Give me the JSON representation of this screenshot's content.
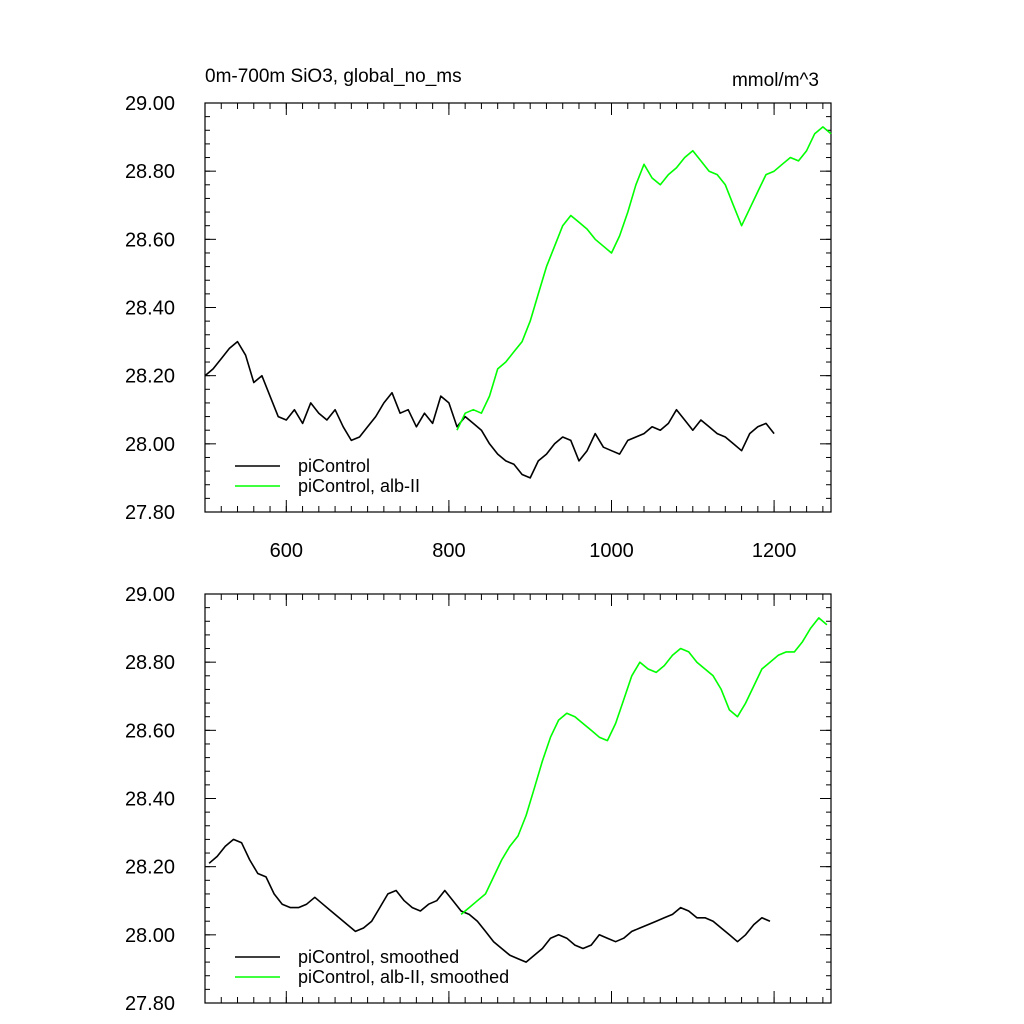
{
  "figure": {
    "title_left": "0m-700m SiO3, global_no_ms",
    "title_right": "mmol/m^3"
  },
  "chart_data": [
    {
      "type": "line",
      "title": "0m-700m SiO3, global_no_ms",
      "units": "mmol/m^3",
      "xlim": [
        500,
        1270
      ],
      "ylim": [
        27.8,
        29.0
      ],
      "xticks": [
        600,
        800,
        1000,
        1200
      ],
      "xtick_labels": [
        "600",
        "800",
        "1000",
        "1200"
      ],
      "yticks": [
        27.8,
        28.0,
        28.2,
        28.4,
        28.6,
        28.8,
        29.0
      ],
      "ytick_labels": [
        "27.80",
        "28.00",
        "28.20",
        "28.40",
        "28.60",
        "28.80",
        "29.00"
      ],
      "legend_position": "bottom-left",
      "series": [
        {
          "name": "piControl",
          "color": "#000000",
          "x": [
            500,
            510,
            520,
            530,
            540,
            550,
            560,
            570,
            580,
            590,
            600,
            610,
            620,
            630,
            640,
            650,
            660,
            670,
            680,
            690,
            700,
            710,
            720,
            730,
            740,
            750,
            760,
            770,
            780,
            790,
            800,
            810,
            820,
            830,
            840,
            850,
            860,
            870,
            880,
            890,
            900,
            910,
            920,
            930,
            940,
            950,
            960,
            970,
            980,
            990,
            1000,
            1010,
            1020,
            1030,
            1040,
            1050,
            1060,
            1070,
            1080,
            1090,
            1100,
            1110,
            1120,
            1130,
            1140,
            1150,
            1160,
            1170,
            1180,
            1190,
            1200
          ],
          "y": [
            28.2,
            28.22,
            28.25,
            28.28,
            28.3,
            28.26,
            28.18,
            28.2,
            28.14,
            28.08,
            28.07,
            28.1,
            28.06,
            28.12,
            28.09,
            28.07,
            28.1,
            28.05,
            28.01,
            28.02,
            28.05,
            28.08,
            28.12,
            28.15,
            28.09,
            28.1,
            28.05,
            28.09,
            28.06,
            28.14,
            28.12,
            28.05,
            28.08,
            28.06,
            28.04,
            28.0,
            27.97,
            27.95,
            27.94,
            27.91,
            27.9,
            27.95,
            27.97,
            28.0,
            28.02,
            28.01,
            27.95,
            27.98,
            28.03,
            27.99,
            27.98,
            27.97,
            28.01,
            28.02,
            28.03,
            28.05,
            28.04,
            28.06,
            28.1,
            28.07,
            28.04,
            28.07,
            28.05,
            28.03,
            28.02,
            28.0,
            27.98,
            28.03,
            28.05,
            28.06,
            28.03
          ]
        },
        {
          "name": "piControl, alb-II",
          "color": "#00ff00",
          "x": [
            810,
            820,
            830,
            840,
            850,
            860,
            870,
            880,
            890,
            900,
            910,
            920,
            930,
            940,
            950,
            960,
            970,
            980,
            990,
            1000,
            1010,
            1020,
            1030,
            1040,
            1050,
            1060,
            1070,
            1080,
            1090,
            1100,
            1110,
            1120,
            1130,
            1140,
            1150,
            1160,
            1170,
            1180,
            1190,
            1200,
            1210,
            1220,
            1230,
            1240,
            1250,
            1260,
            1270
          ],
          "y": [
            28.04,
            28.09,
            28.1,
            28.09,
            28.14,
            28.22,
            28.24,
            28.27,
            28.3,
            28.36,
            28.44,
            28.52,
            28.58,
            28.64,
            28.67,
            28.65,
            28.63,
            28.6,
            28.58,
            28.56,
            28.61,
            28.68,
            28.76,
            28.82,
            28.78,
            28.76,
            28.79,
            28.81,
            28.84,
            28.86,
            28.83,
            28.8,
            28.79,
            28.76,
            28.7,
            28.64,
            28.69,
            28.74,
            28.79,
            28.8,
            28.82,
            28.84,
            28.83,
            28.86,
            28.91,
            28.93,
            28.91
          ]
        }
      ]
    },
    {
      "type": "line",
      "xlim": [
        500,
        1270
      ],
      "ylim": [
        27.8,
        29.0
      ],
      "xticks": [
        600,
        800,
        1000,
        1200
      ],
      "yticks": [
        27.8,
        28.0,
        28.2,
        28.4,
        28.6,
        28.8,
        29.0
      ],
      "ytick_labels": [
        "27.80",
        "28.00",
        "28.20",
        "28.40",
        "28.60",
        "28.80",
        "29.00"
      ],
      "legend_position": "bottom-left",
      "series": [
        {
          "name": "piControl, smoothed",
          "color": "#000000",
          "x": [
            505,
            515,
            525,
            535,
            545,
            555,
            565,
            575,
            585,
            595,
            605,
            615,
            625,
            635,
            645,
            655,
            665,
            675,
            685,
            695,
            705,
            715,
            725,
            735,
            745,
            755,
            765,
            775,
            785,
            795,
            805,
            815,
            825,
            835,
            845,
            855,
            865,
            875,
            885,
            895,
            905,
            915,
            925,
            935,
            945,
            955,
            965,
            975,
            985,
            995,
            1005,
            1015,
            1025,
            1035,
            1045,
            1055,
            1065,
            1075,
            1085,
            1095,
            1105,
            1115,
            1125,
            1135,
            1145,
            1155,
            1165,
            1175,
            1185,
            1195
          ],
          "y": [
            28.21,
            28.23,
            28.26,
            28.28,
            28.27,
            28.22,
            28.18,
            28.17,
            28.12,
            28.09,
            28.08,
            28.08,
            28.09,
            28.11,
            28.09,
            28.07,
            28.05,
            28.03,
            28.01,
            28.02,
            28.04,
            28.08,
            28.12,
            28.13,
            28.1,
            28.08,
            28.07,
            28.09,
            28.1,
            28.13,
            28.1,
            28.07,
            28.06,
            28.04,
            28.01,
            27.98,
            27.96,
            27.94,
            27.93,
            27.92,
            27.94,
            27.96,
            27.99,
            28.0,
            27.99,
            27.97,
            27.96,
            27.97,
            28.0,
            27.99,
            27.98,
            27.99,
            28.01,
            28.02,
            28.03,
            28.04,
            28.05,
            28.06,
            28.08,
            28.07,
            28.05,
            28.05,
            28.04,
            28.02,
            28.0,
            27.98,
            28.0,
            28.03,
            28.05,
            28.04
          ]
        },
        {
          "name": "piControl, alb-II, smoothed",
          "color": "#00ff00",
          "x": [
            815,
            825,
            835,
            845,
            855,
            865,
            875,
            885,
            895,
            905,
            915,
            925,
            935,
            945,
            955,
            965,
            975,
            985,
            995,
            1005,
            1015,
            1025,
            1035,
            1045,
            1055,
            1065,
            1075,
            1085,
            1095,
            1105,
            1115,
            1125,
            1135,
            1145,
            1155,
            1165,
            1175,
            1185,
            1195,
            1205,
            1215,
            1225,
            1235,
            1245,
            1255,
            1265
          ],
          "y": [
            28.06,
            28.08,
            28.1,
            28.12,
            28.17,
            28.22,
            28.26,
            28.29,
            28.35,
            28.43,
            28.51,
            28.58,
            28.63,
            28.65,
            28.64,
            28.62,
            28.6,
            28.58,
            28.57,
            28.62,
            28.69,
            28.76,
            28.8,
            28.78,
            28.77,
            28.79,
            28.82,
            28.84,
            28.83,
            28.8,
            28.78,
            28.76,
            28.72,
            28.66,
            28.64,
            28.68,
            28.73,
            28.78,
            28.8,
            28.82,
            28.83,
            28.83,
            28.86,
            28.9,
            28.93,
            28.91
          ]
        }
      ]
    }
  ]
}
